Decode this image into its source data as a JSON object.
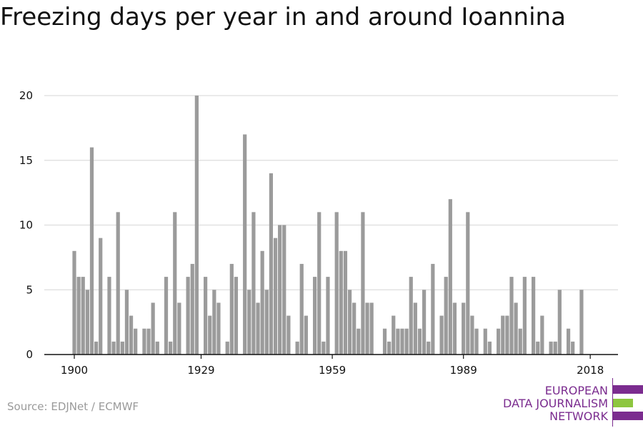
{
  "chart_data": {
    "type": "bar",
    "title": "Freezing days per year in and around Ioannina",
    "xlabel": "",
    "ylabel": "",
    "ylim": [
      0,
      20
    ],
    "yticks": [
      0,
      5,
      10,
      15,
      20
    ],
    "xtick_labels": [
      "1900",
      "1929",
      "1959",
      "1989",
      "2018"
    ],
    "grid": true,
    "categories": [
      1900,
      1901,
      1902,
      1903,
      1904,
      1905,
      1906,
      1907,
      1908,
      1909,
      1910,
      1911,
      1912,
      1913,
      1914,
      1915,
      1916,
      1917,
      1918,
      1919,
      1920,
      1921,
      1922,
      1923,
      1924,
      1925,
      1926,
      1927,
      1928,
      1929,
      1930,
      1931,
      1932,
      1933,
      1934,
      1935,
      1936,
      1937,
      1938,
      1939,
      1940,
      1941,
      1942,
      1943,
      1944,
      1945,
      1946,
      1947,
      1948,
      1949,
      1950,
      1951,
      1952,
      1953,
      1954,
      1955,
      1956,
      1957,
      1958,
      1959,
      1960,
      1961,
      1962,
      1963,
      1964,
      1965,
      1966,
      1967,
      1968,
      1969,
      1970,
      1971,
      1972,
      1973,
      1974,
      1975,
      1976,
      1977,
      1978,
      1979,
      1980,
      1981,
      1982,
      1983,
      1984,
      1985,
      1986,
      1987,
      1988,
      1989,
      1990,
      1991,
      1992,
      1993,
      1994,
      1995,
      1996,
      1997,
      1998,
      1999,
      2000,
      2001,
      2002,
      2003,
      2004,
      2005,
      2006,
      2007,
      2008,
      2009,
      2010,
      2011,
      2012,
      2013,
      2014,
      2015,
      2016,
      2017,
      2018
    ],
    "values": [
      8,
      6,
      6,
      5,
      16,
      1,
      9,
      0,
      6,
      1,
      11,
      1,
      5,
      3,
      2,
      0,
      2,
      2,
      4,
      1,
      0,
      6,
      1,
      11,
      4,
      0,
      6,
      7,
      20,
      0,
      6,
      3,
      5,
      4,
      0,
      1,
      7,
      6,
      0,
      17,
      5,
      11,
      4,
      8,
      5,
      14,
      9,
      10,
      10,
      3,
      0,
      1,
      7,
      3,
      0,
      6,
      11,
      1,
      6,
      0,
      11,
      8,
      8,
      5,
      4,
      2,
      11,
      4,
      4,
      0,
      0,
      2,
      1,
      3,
      2,
      2,
      2,
      6,
      4,
      2,
      5,
      1,
      7,
      0,
      3,
      6,
      12,
      4,
      0,
      4,
      11,
      3,
      2,
      0,
      2,
      1,
      0,
      2,
      3,
      3,
      6,
      4,
      2,
      6,
      0,
      6,
      1,
      3,
      0,
      1,
      1,
      5,
      0,
      2,
      1,
      0,
      5,
      0,
      0
    ],
    "bar_color": "#9b9b9b",
    "grid_color": "#dddddd",
    "axis_color": "#111111"
  },
  "source": "Source: EDJNet / ECMWF",
  "logo": {
    "lines": [
      "EUROPEAN",
      "DATA JOURNALISM",
      "NETWORK"
    ],
    "purple": "#7b2c8f",
    "green": "#8dc63f"
  }
}
